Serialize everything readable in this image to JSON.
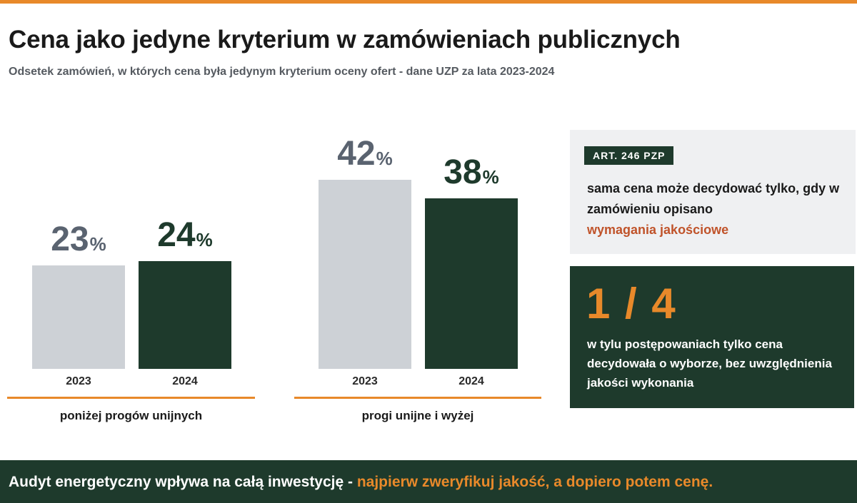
{
  "title": "Cena jako jedyne kryterium w zamówieniach publicznych",
  "subtitle": "Odsetek zamówień, w których cena była jedynym kryterium oceny ofert - dane UZP za lata 2023-2024",
  "colors": {
    "accent": "#e8892a",
    "dark_green": "#1e3a2c",
    "light_gray_bar": "#cdd1d6",
    "gray_value": "#5a6370",
    "highlight": "#c0532a"
  },
  "chart_data": {
    "type": "bar",
    "unit": "%",
    "groups": [
      {
        "name": "poniżej progów unijnych",
        "bars": [
          {
            "year": "2023",
            "value": 23
          },
          {
            "year": "2024",
            "value": 24
          }
        ]
      },
      {
        "name": "progi unijne i wyżej",
        "bars": [
          {
            "year": "2023",
            "value": 42
          },
          {
            "year": "2024",
            "value": 38
          }
        ]
      }
    ]
  },
  "info_box": {
    "badge": "ART. 246 PZP",
    "text": "sama cena może decydować tylko, gdy w zamówieniu opisano",
    "highlight": "wymagania jakościowe"
  },
  "stat_box": {
    "big_text": "1 / 4",
    "text": "w tylu postępowaniach tylko cena decydowała o wyborze, bez uwzględnienia jakości wykonania"
  },
  "footer": {
    "text": "Audyt energetyczny wpływa na całą inwestycję - ",
    "highlight": "najpierw zweryfikuj jakość, a dopiero potem cenę."
  }
}
